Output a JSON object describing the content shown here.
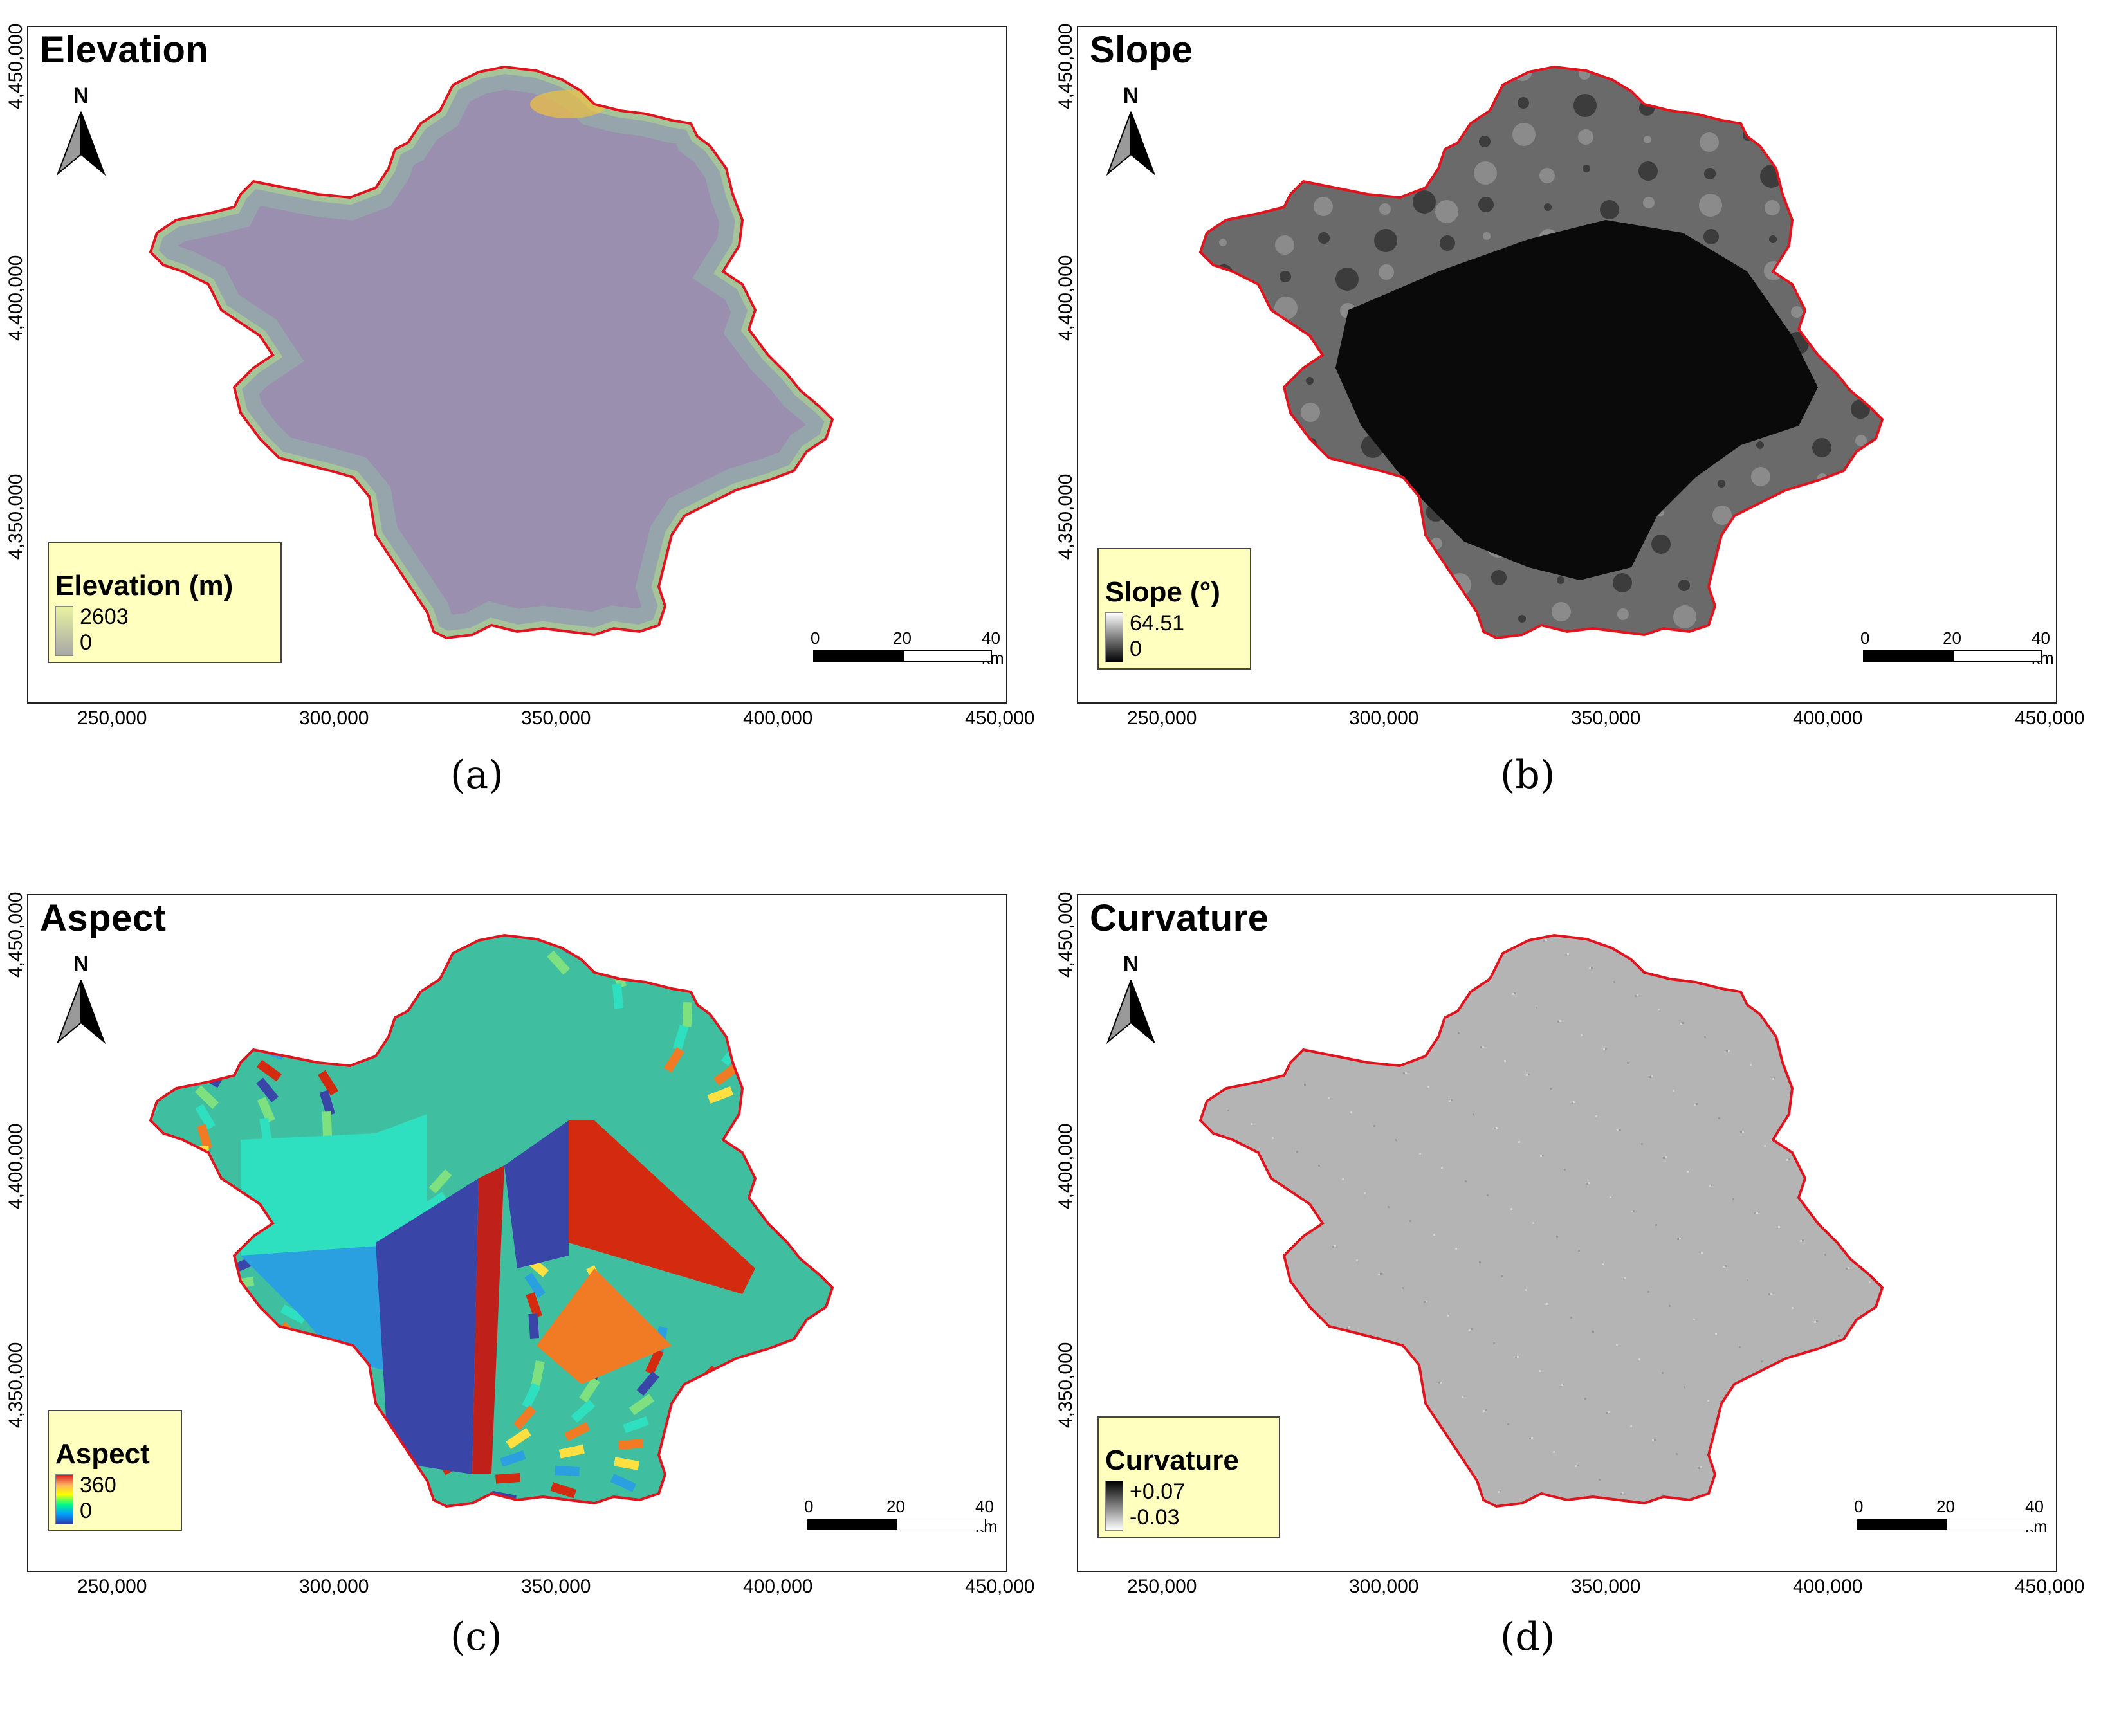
{
  "panels": [
    {
      "title": "Elevation",
      "legend_title": "Elevation (m)",
      "legend_max": "2603",
      "legend_min": "0",
      "legend_ramp": [
        "#e9f3a0",
        "#a8a8a8"
      ],
      "fill_colors": [
        "#9b8fb0",
        "#8fb8a8",
        "#b0d890"
      ],
      "caption": "(a)"
    },
    {
      "title": "Slope",
      "legend_title": "Slope (°)",
      "legend_max": "64.51",
      "legend_min": "0",
      "legend_ramp": [
        "#ffffff",
        "#000000"
      ],
      "fill_colors": [
        "#0a0a0a",
        "#3a3a3a",
        "#6a6a6a"
      ],
      "caption": "(b)"
    },
    {
      "title": "Aspect",
      "legend_title": "Aspect",
      "legend_max": "360",
      "legend_min": "0",
      "legend_ramp": [
        "#d7191c",
        "#fdae61",
        "#ffff00",
        "#00ff80",
        "#00a0ff",
        "#2b3cb0"
      ],
      "fill_colors": [
        "#3a45a8",
        "#d42a0f",
        "#2aa0e0",
        "#2ee0c0",
        "#f07b24"
      ],
      "caption": "(c)"
    },
    {
      "title": "Curvature",
      "legend_title": "Curvature",
      "legend_max": "+0.07",
      "legend_min": "-0.03",
      "legend_ramp": [
        "#000000",
        "#ffffff"
      ],
      "fill_colors": [
        "#b4b4b4"
      ],
      "caption": "(d)"
    }
  ],
  "north_label": "N",
  "scale": {
    "zero": "0",
    "mid": "20",
    "end": "40 km"
  },
  "x_ticks": [
    "250,000",
    "300,000",
    "350,000",
    "400,000",
    "450,000"
  ],
  "y_ticks": [
    "4,450,000",
    "4,400,000",
    "4,350,000"
  ],
  "boundary_color": "#e0141e"
}
